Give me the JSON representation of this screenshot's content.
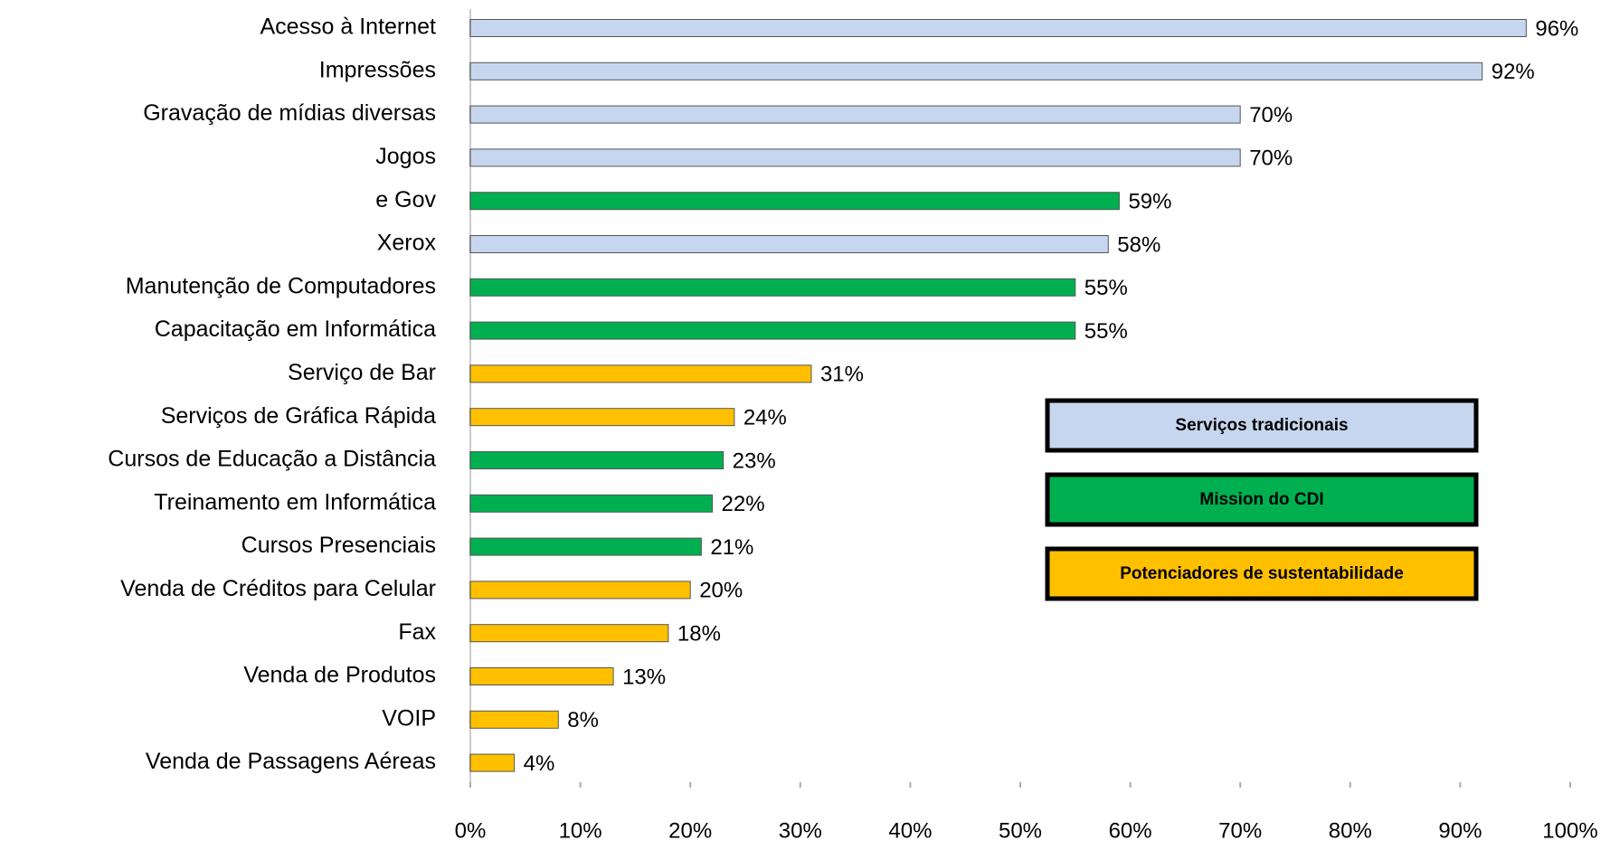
{
  "chart_data": {
    "type": "bar",
    "orientation": "horizontal",
    "categories": [
      "Acesso à Internet",
      "Impressões",
      "Gravação de mídias diversas",
      "Jogos",
      "e Gov",
      "Xerox",
      "Manutenção de Computadores",
      "Capacitação em Informática",
      "Serviço de Bar",
      "Serviços de Gráfica Rápida",
      "Cursos de Educação a Distância",
      "Treinamento em Informática",
      "Cursos Presenciais",
      "Venda de Créditos para Celular",
      "Fax",
      "Venda de Produtos",
      "VOIP",
      "Venda de Passagens Aéreas"
    ],
    "series": [
      {
        "name": "Serviços tradicionais",
        "color": "#c6d6ee",
        "values": [
          96,
          92,
          70,
          70,
          null,
          58,
          null,
          null,
          null,
          null,
          null,
          null,
          null,
          null,
          null,
          null,
          null,
          null
        ],
        "value_labels": [
          "96%",
          "92%",
          "70%",
          "70%",
          null,
          "58%",
          null,
          null,
          null,
          null,
          null,
          null,
          null,
          null,
          null,
          null,
          null,
          null
        ]
      },
      {
        "name": "Mission do CDI",
        "color": "#00b050",
        "values": [
          null,
          null,
          null,
          null,
          59,
          null,
          55,
          55,
          null,
          null,
          23,
          22,
          21,
          null,
          null,
          null,
          null,
          null
        ],
        "value_labels": [
          null,
          null,
          null,
          null,
          "59%",
          null,
          "55%",
          "55%",
          null,
          null,
          "23%",
          "22%",
          "21%",
          null,
          null,
          null,
          null,
          null
        ]
      },
      {
        "name": "Potenciadores de sustentabilidade",
        "color": "#ffc000",
        "values": [
          null,
          null,
          null,
          null,
          null,
          null,
          null,
          null,
          31,
          24,
          null,
          null,
          null,
          20,
          18,
          13,
          8,
          4
        ],
        "value_labels": [
          null,
          null,
          null,
          null,
          null,
          null,
          null,
          null,
          "31%",
          "24%",
          null,
          null,
          null,
          "20%",
          "18%",
          "13%",
          "8%",
          "4%"
        ]
      }
    ],
    "xlim": [
      0,
      100
    ],
    "xticks": [
      {
        "value": 0,
        "label": "0%"
      },
      {
        "value": 10,
        "label": "10%"
      },
      {
        "value": 20,
        "label": "20%"
      },
      {
        "value": 30,
        "label": "30%"
      },
      {
        "value": 40,
        "label": "40%"
      },
      {
        "value": 50,
        "label": "50%"
      },
      {
        "value": 60,
        "label": "60%"
      },
      {
        "value": 70,
        "label": "70%"
      },
      {
        "value": 80,
        "label": "80%"
      },
      {
        "value": 90,
        "label": "90%"
      },
      {
        "value": 100,
        "label": "100%"
      }
    ],
    "grid": false
  }
}
